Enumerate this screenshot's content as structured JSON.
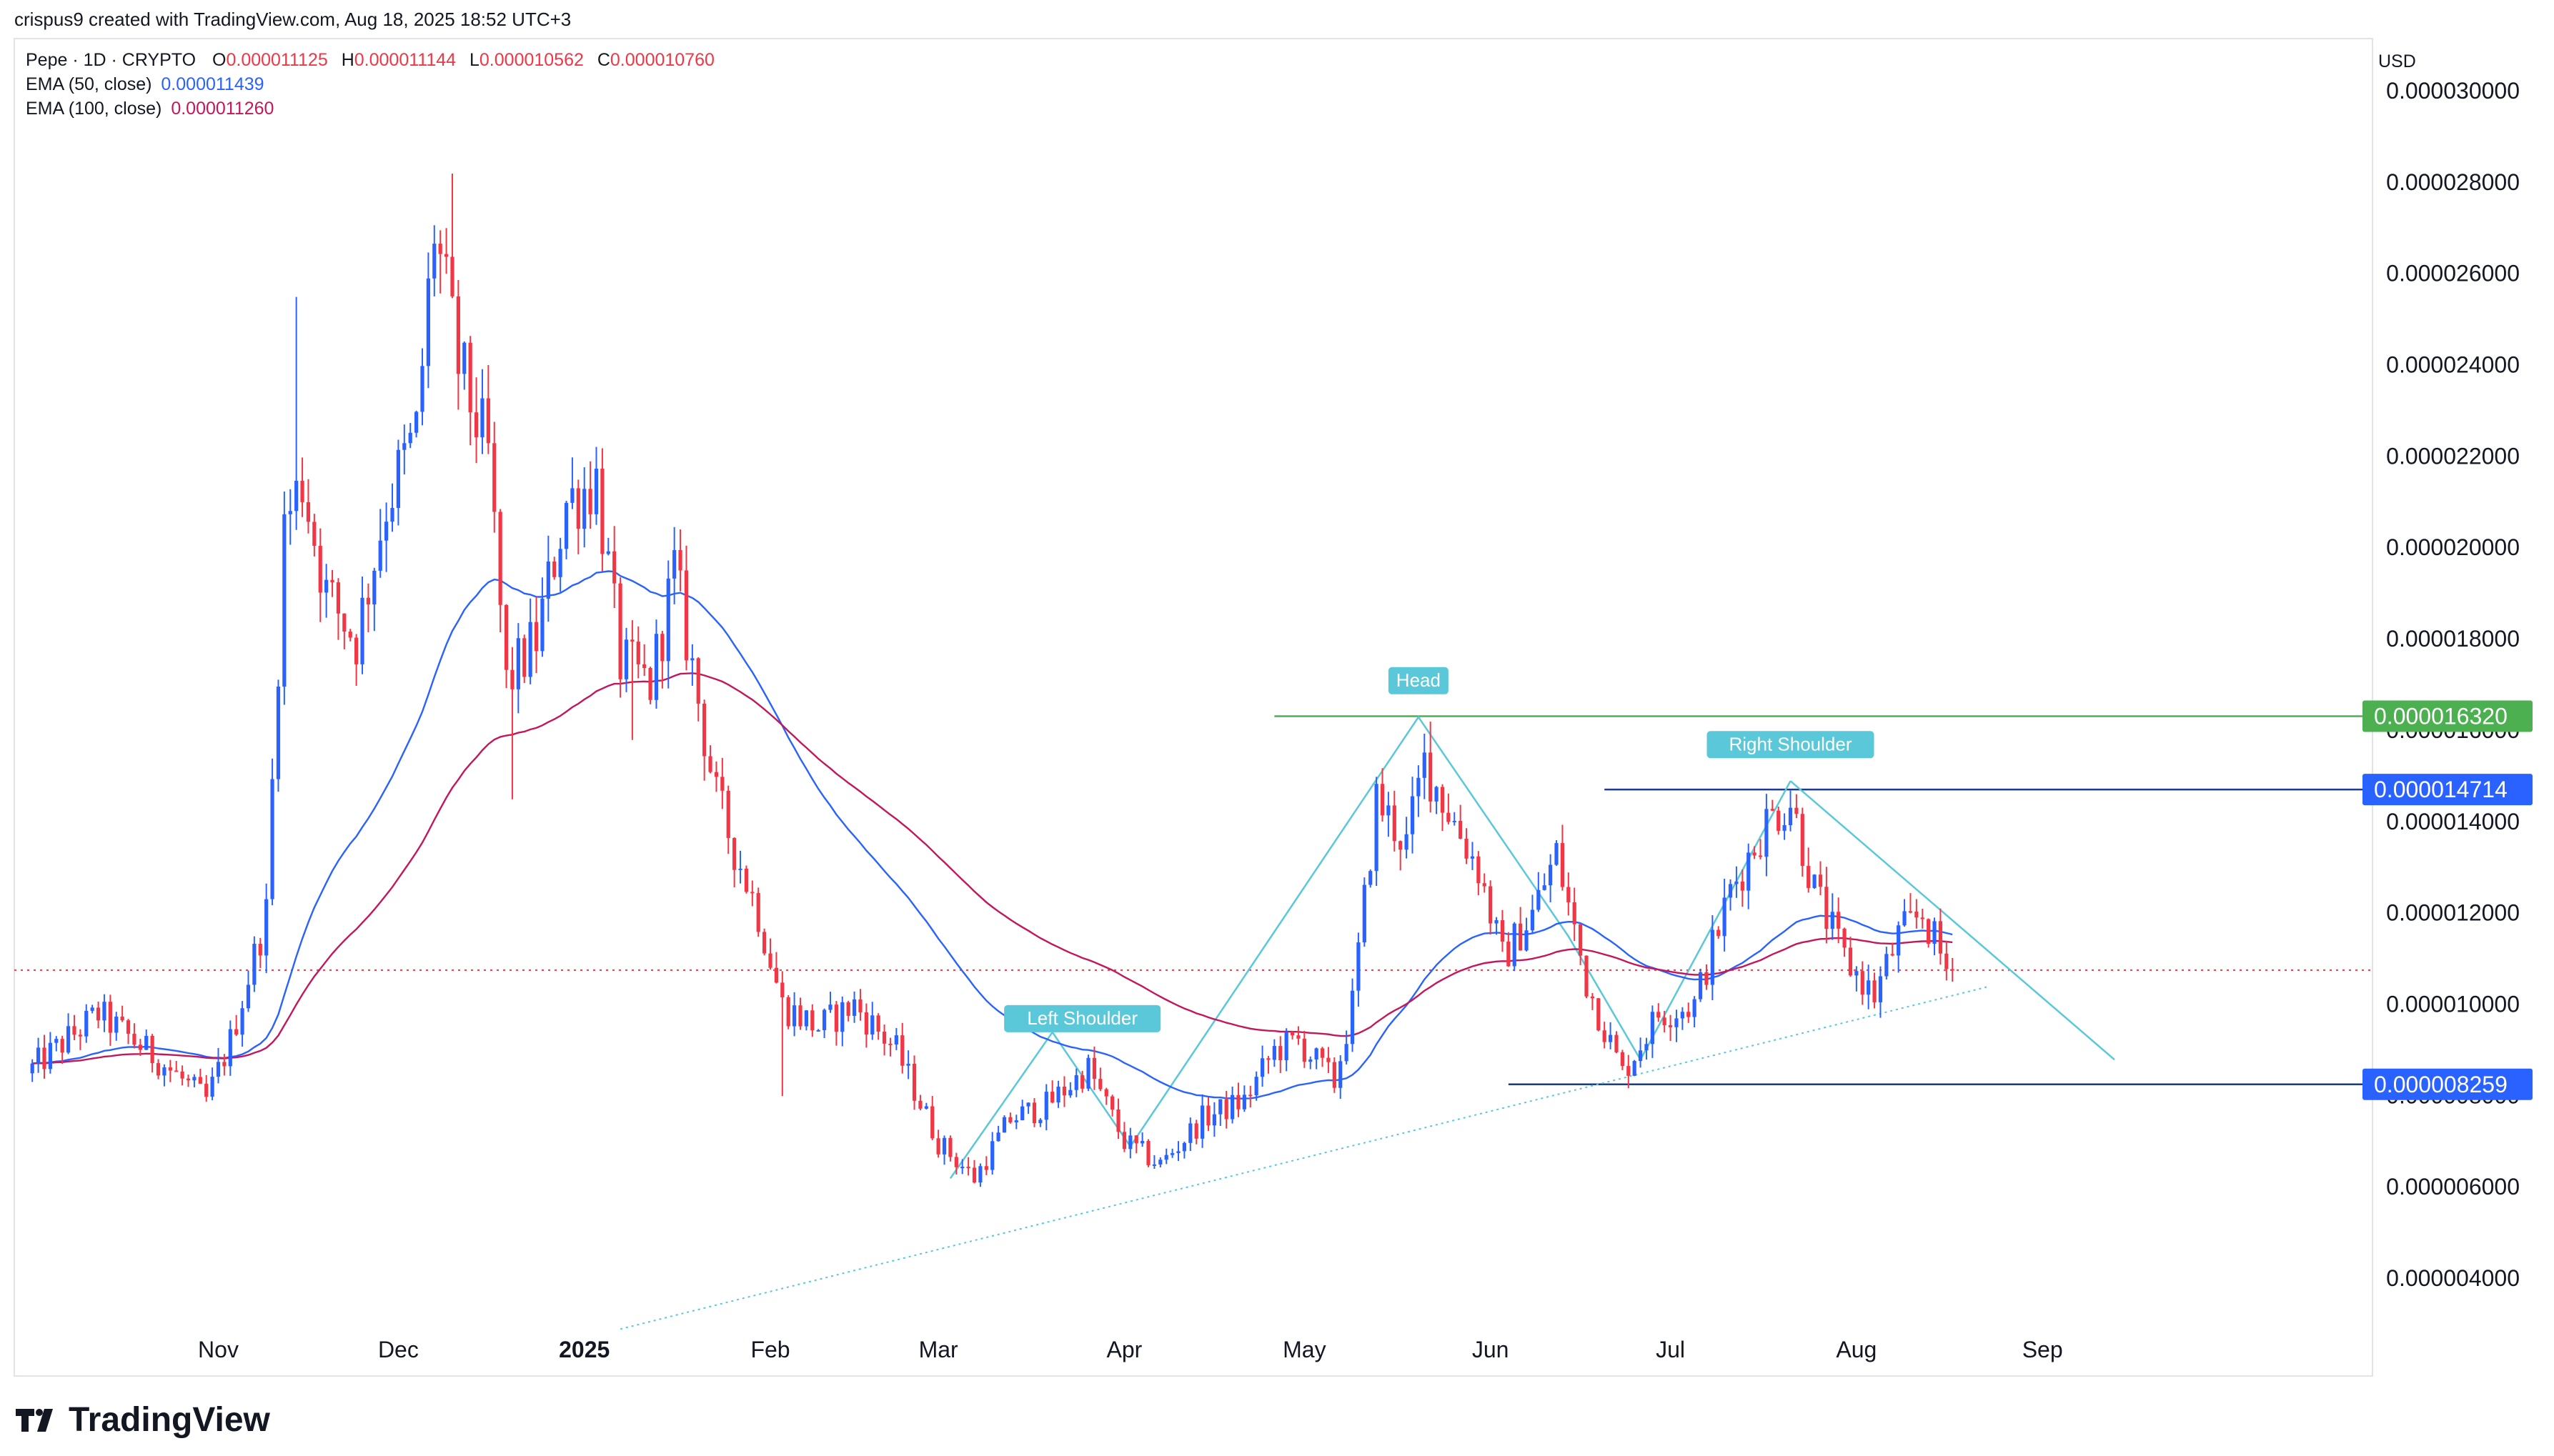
{
  "credit": "crispus9 created with TradingView.com, Aug 18, 2025 18:52 UTC+3",
  "symbol_line": "Pepe · 1D · CRYPTO",
  "ohlc": {
    "O": "0.000011125",
    "H": "0.000011144",
    "L": "0.000010562",
    "C": "0.000010760"
  },
  "ema50": {
    "label": "EMA (50, close)",
    "value": "0.000011439",
    "color": "#2962ff"
  },
  "ema100": {
    "label": "EMA (100, close)",
    "value": "0.000011260",
    "color": "#c2185b"
  },
  "currency": "USD",
  "brand": "TradingView",
  "colors": {
    "up": "#2962ff",
    "down": "#f23645",
    "pattern": "#5ac8d8",
    "head_line": "#4caf50",
    "level_line": "#1e3a8a",
    "label_blue": "#2962ff",
    "label_green": "#4caf50"
  },
  "chart_data": {
    "type": "candlestick",
    "y_axis": {
      "ylim": [
        3.4e-06,
        3.02e-05
      ],
      "ticks": [
        "0.000004000",
        "0.000006000",
        "0.000008000",
        "0.000010000",
        "0.000012000",
        "0.000014000",
        "0.000016000",
        "0.000018000",
        "0.000020000",
        "0.000022000",
        "0.000024000",
        "0.000026000",
        "0.000028000",
        "0.000030000"
      ]
    },
    "x_axis": {
      "ticks": [
        {
          "label": "Nov",
          "day": 31,
          "bold": false
        },
        {
          "label": "Dec",
          "day": 61,
          "bold": false
        },
        {
          "label": "2025",
          "day": 92,
          "bold": true
        },
        {
          "label": "Feb",
          "day": 123,
          "bold": false
        },
        {
          "label": "Mar",
          "day": 151,
          "bold": false
        },
        {
          "label": "Apr",
          "day": 182,
          "bold": false
        },
        {
          "label": "May",
          "day": 212,
          "bold": false
        },
        {
          "label": "Jun",
          "day": 243,
          "bold": false
        },
        {
          "label": "Jul",
          "day": 273,
          "bold": false
        },
        {
          "label": "Aug",
          "day": 304,
          "bold": false
        },
        {
          "label": "Sep",
          "day": 335,
          "bold": false
        }
      ],
      "day_range": [
        -3,
        390
      ]
    },
    "price_labels": [
      {
        "value": 1.632e-05,
        "text": "0.000016320",
        "color": "#4caf50"
      },
      {
        "value": 1.4714e-05,
        "text": "0.000014714",
        "color": "#2962ff"
      },
      {
        "value": 8.259e-06,
        "text": "0.000008259",
        "color": "#2962ff"
      }
    ],
    "annotations": [
      {
        "text": "Left Shoulder",
        "day": 175,
        "value": 9.4e-06
      },
      {
        "text": "Head",
        "day": 231,
        "value": 1.68e-05
      },
      {
        "text": "Right Shoulder",
        "day": 293,
        "value": 1.54e-05
      }
    ],
    "current_price": 1.076e-05,
    "anchors": [
      [
        0,
        8.5e-06
      ],
      [
        12,
        9.8e-06
      ],
      [
        22,
        8.8e-06
      ],
      [
        30,
        7.9e-06
      ],
      [
        34,
        9.2e-06
      ],
      [
        40,
        1.2e-05
      ],
      [
        43,
        2.05e-05
      ],
      [
        46,
        2.15e-05
      ],
      [
        50,
        1.9e-05
      ],
      [
        55,
        1.8e-05
      ],
      [
        60,
        2.1e-05
      ],
      [
        65,
        2.25e-05
      ],
      [
        68,
        2.7e-05
      ],
      [
        72,
        2.4e-05
      ],
      [
        77,
        2.2e-05
      ],
      [
        80,
        1.7e-05
      ],
      [
        85,
        1.8e-05
      ],
      [
        90,
        2.1e-05
      ],
      [
        95,
        2.15e-05
      ],
      [
        99,
        1.75e-05
      ],
      [
        104,
        1.7e-05
      ],
      [
        108,
        1.95e-05
      ],
      [
        115,
        1.45e-05
      ],
      [
        122,
        1.2e-05
      ],
      [
        126,
        1e-05
      ],
      [
        132,
        9.5e-06
      ],
      [
        138,
        1e-05
      ],
      [
        145,
        9e-06
      ],
      [
        152,
        7e-06
      ],
      [
        158,
        6.2e-06
      ],
      [
        164,
        7.5e-06
      ],
      [
        170,
        7.8e-06
      ],
      [
        177,
        8.6e-06
      ],
      [
        183,
        7e-06
      ],
      [
        189,
        6.5e-06
      ],
      [
        196,
        7.5e-06
      ],
      [
        203,
        7.9e-06
      ],
      [
        208,
        9e-06
      ],
      [
        212,
        9.2e-06
      ],
      [
        218,
        8.3e-06
      ],
      [
        221,
        1e-05
      ],
      [
        225,
        1.45e-05
      ],
      [
        230,
        1.35e-05
      ],
      [
        233,
        1.53e-05
      ],
      [
        238,
        1.4e-05
      ],
      [
        242,
        1.3e-05
      ],
      [
        246,
        1.1e-05
      ],
      [
        251,
        1.2e-05
      ],
      [
        255,
        1.33e-05
      ],
      [
        260,
        1.05e-05
      ],
      [
        266,
        8.5e-06
      ],
      [
        272,
        9.8e-06
      ],
      [
        278,
        1e-05
      ],
      [
        284,
        1.25e-05
      ],
      [
        290,
        1.4e-05
      ],
      [
        294,
        1.45e-05
      ],
      [
        298,
        1.25e-05
      ],
      [
        303,
        1.1e-05
      ],
      [
        308,
        1.02e-05
      ],
      [
        312,
        1.15e-05
      ],
      [
        316,
        1.2e-05
      ],
      [
        320,
        1.08e-05
      ]
    ],
    "wick_spikes": [
      [
        44,
        2.55e-05
      ],
      [
        70,
        2.82e-05
      ],
      [
        80,
        1.45e-05
      ],
      [
        100,
        1.58e-05
      ],
      [
        125,
        8e-06
      ],
      [
        233,
        1.62e-05
      ]
    ]
  }
}
